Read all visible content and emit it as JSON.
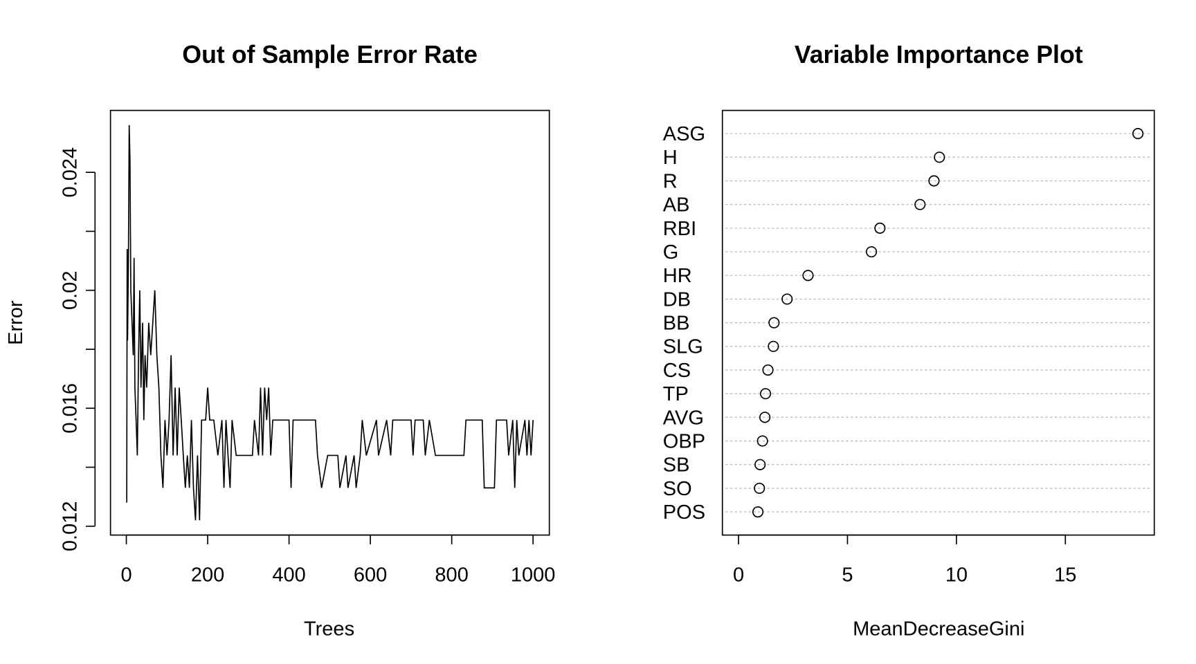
{
  "chart_data": [
    {
      "type": "line",
      "title": "Out of Sample Error Rate",
      "xlabel": "Trees",
      "ylabel": "Error",
      "x": [
        1,
        2,
        3,
        5,
        7,
        9,
        11,
        14,
        17,
        19,
        21,
        24,
        27,
        30,
        33,
        36,
        40,
        43,
        46,
        50,
        55,
        60,
        65,
        70,
        75,
        80,
        85,
        90,
        95,
        100,
        105,
        110,
        115,
        120,
        125,
        130,
        135,
        140,
        145,
        150,
        155,
        160,
        165,
        170,
        175,
        180,
        185,
        195,
        200,
        205,
        215,
        225,
        235,
        240,
        245,
        250,
        255,
        260,
        270,
        310,
        315,
        325,
        330,
        335,
        340,
        345,
        350,
        355,
        360,
        400,
        405,
        410,
        465,
        470,
        480,
        495,
        520,
        525,
        540,
        545,
        560,
        565,
        575,
        580,
        590,
        615,
        620,
        640,
        650,
        655,
        700,
        705,
        710,
        730,
        735,
        745,
        760,
        830,
        835,
        875,
        880,
        905,
        910,
        935,
        940,
        950,
        955,
        960,
        965,
        980,
        985,
        990,
        995,
        1000
      ],
      "series": [
        {
          "name": "Error",
          "color": "#000000",
          "values": [
            0.0128,
            0.0214,
            0.0183,
            0.0208,
            0.0256,
            0.0244,
            0.02,
            0.0189,
            0.0178,
            0.0211,
            0.0167,
            0.0156,
            0.0144,
            0.0178,
            0.02,
            0.0167,
            0.0189,
            0.0156,
            0.0178,
            0.0167,
            0.0189,
            0.0178,
            0.0189,
            0.02,
            0.0178,
            0.0167,
            0.0144,
            0.0133,
            0.0156,
            0.0144,
            0.0156,
            0.0178,
            0.0144,
            0.0167,
            0.0144,
            0.0167,
            0.0156,
            0.0144,
            0.0133,
            0.0144,
            0.0133,
            0.0156,
            0.0133,
            0.0122,
            0.0144,
            0.0122,
            0.0156,
            0.0156,
            0.0167,
            0.0156,
            0.0156,
            0.0144,
            0.0156,
            0.0133,
            0.0156,
            0.0144,
            0.0133,
            0.0156,
            0.0144,
            0.0144,
            0.0156,
            0.0144,
            0.0167,
            0.0144,
            0.0167,
            0.0156,
            0.0167,
            0.0144,
            0.0156,
            0.0156,
            0.0133,
            0.0156,
            0.0156,
            0.0144,
            0.0133,
            0.0144,
            0.0144,
            0.0133,
            0.0144,
            0.0133,
            0.0144,
            0.0133,
            0.0144,
            0.0156,
            0.0144,
            0.0156,
            0.0144,
            0.0156,
            0.0144,
            0.0156,
            0.0156,
            0.0144,
            0.0156,
            0.0156,
            0.0144,
            0.0156,
            0.0144,
            0.0144,
            0.0156,
            0.0156,
            0.0133,
            0.0133,
            0.0156,
            0.0156,
            0.0144,
            0.0156,
            0.0133,
            0.0156,
            0.0144,
            0.0156,
            0.0144,
            0.0156,
            0.0144,
            0.0156
          ]
        }
      ],
      "xlim": [
        -39,
        1040
      ],
      "xticks": [
        0,
        200,
        400,
        600,
        800,
        1000
      ],
      "ylim": [
        0.0117,
        0.0261
      ],
      "yticks": [
        0.012,
        0.016,
        0.02,
        0.024
      ],
      "yminorticks": [
        0.014,
        0.018,
        0.022
      ]
    },
    {
      "type": "dot",
      "title": "Variable Importance Plot",
      "xlabel": "MeanDecreaseGini",
      "categories": [
        "ASG",
        "H",
        "R",
        "AB",
        "RBI",
        "G",
        "HR",
        "DB",
        "BB",
        "SLG",
        "CS",
        "TP",
        "AVG",
        "OBP",
        "SB",
        "SO",
        "POS"
      ],
      "values": [
        18.33,
        9.22,
        8.97,
        8.33,
        6.49,
        6.1,
        3.19,
        2.23,
        1.63,
        1.6,
        1.35,
        1.24,
        1.21,
        1.1,
        0.99,
        0.96,
        0.89
      ],
      "xlim": [
        -0.74,
        19.08
      ],
      "xticks": [
        0,
        5,
        10,
        15
      ],
      "grid": true
    }
  ]
}
